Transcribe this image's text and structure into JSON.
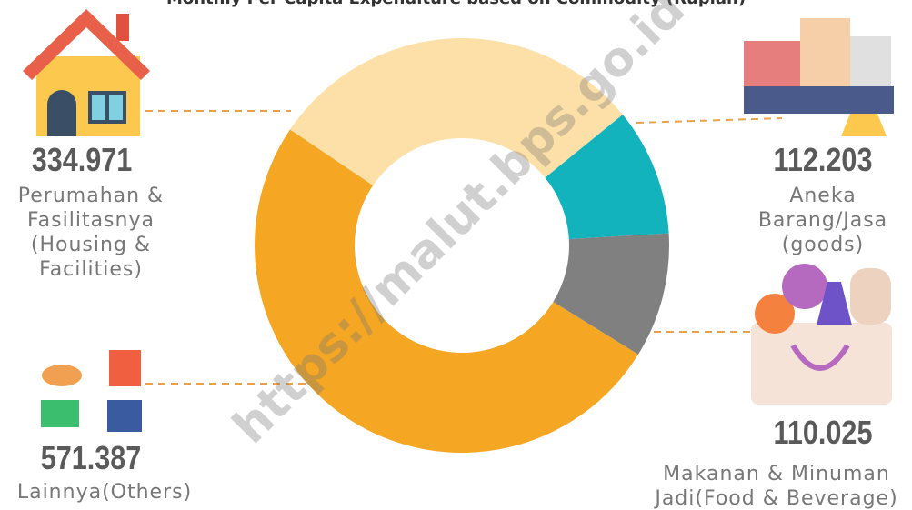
{
  "chart_data": {
    "type": "donut",
    "title": "Monthly Per Capita Expenditure based on Commodity (Rupiah)",
    "watermark": "https://malut.bps.go.id",
    "categories": [
      "Perumahan & Fasilitasnya (Housing & Facilities)",
      "Aneka Barang/Jasa (goods)",
      "Makanan & Minuman Jadi(Food & Beverage)",
      "Lainnya(Others)"
    ],
    "values": [
      334971,
      112203,
      110025,
      571387
    ],
    "value_labels": [
      "334.971",
      "112.203",
      "110.025",
      "571.387"
    ],
    "colors": [
      "#fde0a8",
      "#12b3bd",
      "#808080",
      "#f5a623"
    ]
  }
}
